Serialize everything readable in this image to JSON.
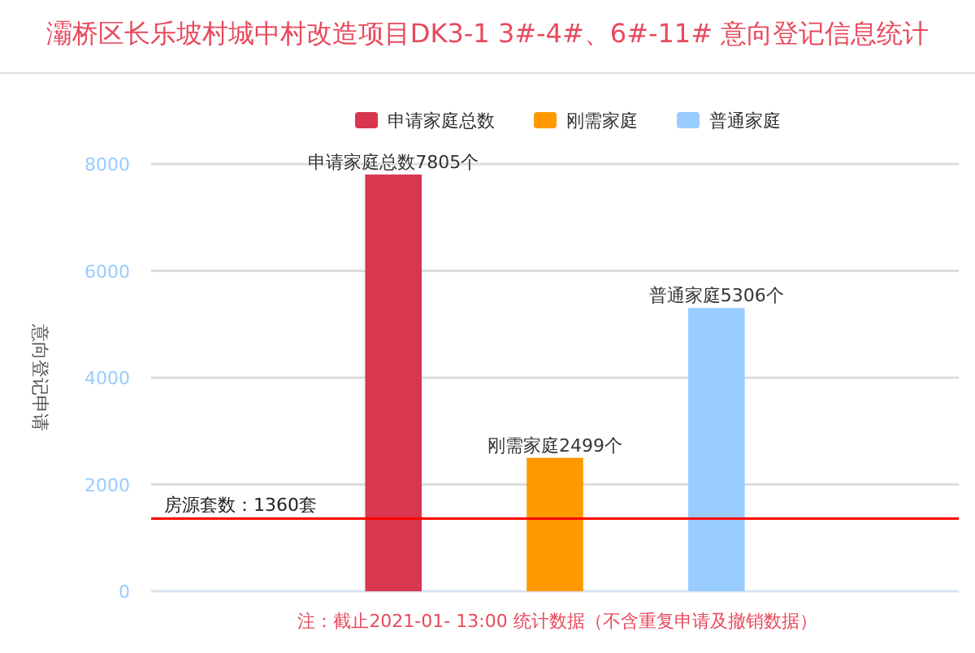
{
  "chart_data": {
    "type": "bar",
    "title": "灞桥区长乐坡村城中村改造项目DK3-1 3#-4#、6#-11# 意向登记信息统计",
    "ylabel": "意向登记申请",
    "categories": [
      null,
      null,
      null,
      null,
      null
    ],
    "series": [
      {
        "name": "申请家庭总数",
        "color": "#d9374f",
        "values": [
          null,
          7805,
          null,
          null,
          null
        ],
        "value_labels": [
          null,
          "申请家庭总数7805个",
          null,
          null,
          null
        ]
      },
      {
        "name": "刚需家庭",
        "color": "#ff9900",
        "values": [
          null,
          null,
          2499,
          null,
          null
        ],
        "value_labels": [
          null,
          null,
          "刚需家庭2499个",
          null,
          null
        ]
      },
      {
        "name": "普通家庭",
        "color": "#99ccff",
        "values": [
          null,
          null,
          null,
          5306,
          null
        ],
        "value_labels": [
          null,
          null,
          null,
          "普通家庭5306个",
          null
        ]
      }
    ],
    "ylim": [
      0,
      8000
    ],
    "yticks": [
      0,
      2000,
      4000,
      6000,
      8000
    ],
    "grid": "y",
    "legend": "top",
    "ref_lines": [
      {
        "axis": "y",
        "value": 1360,
        "label": "房源套数：1360套",
        "color": "#ff0000"
      }
    ],
    "annotations": [
      "注：截止2021-01- 13:00 统计数据（不含重复申请及撤销数据）"
    ]
  }
}
